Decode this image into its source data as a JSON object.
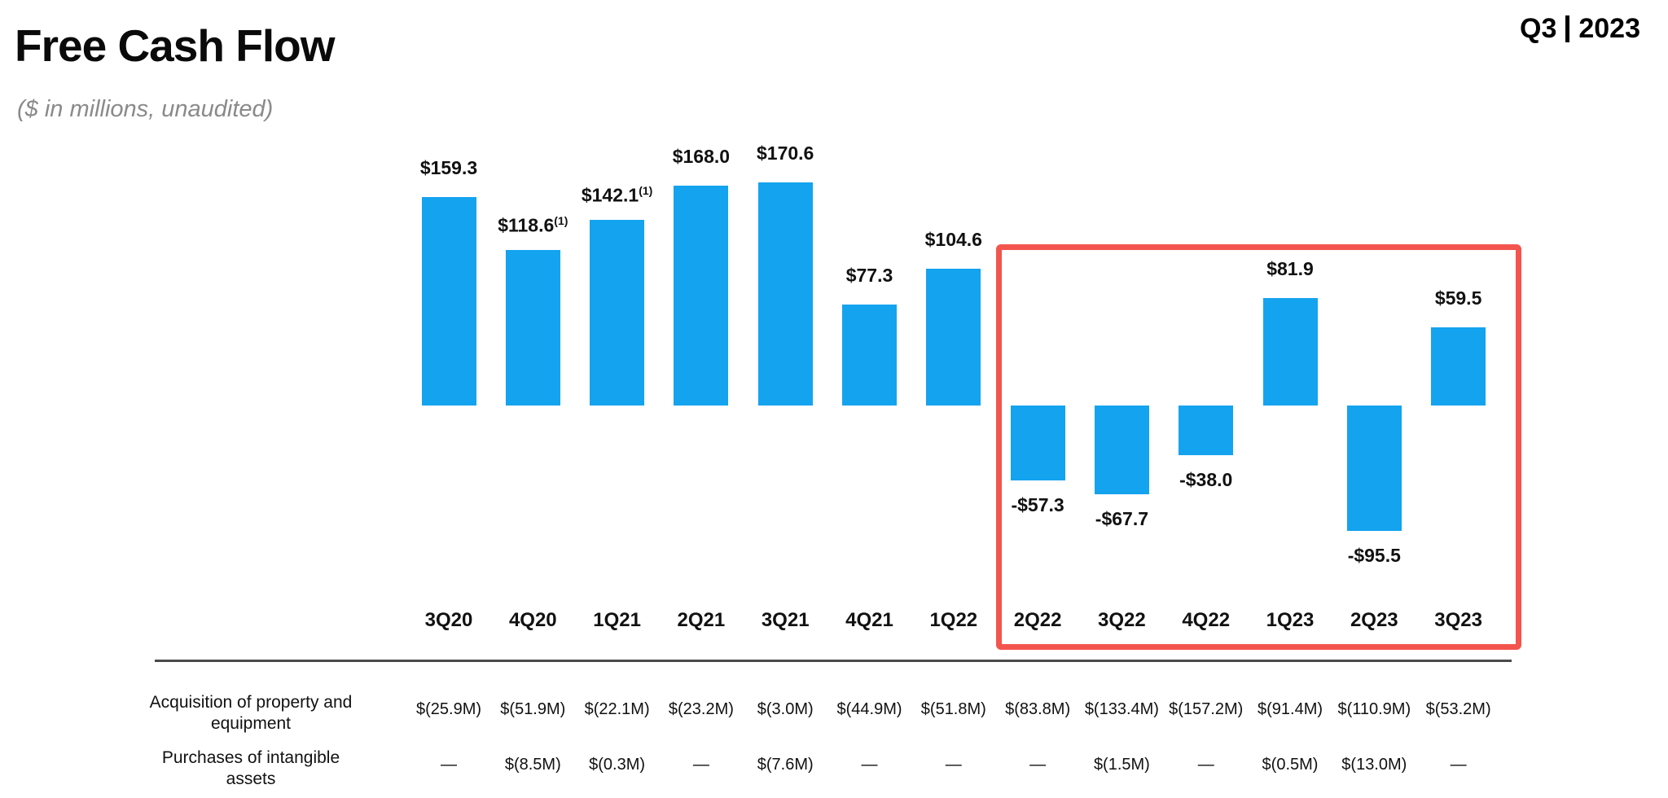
{
  "header": {
    "title": "Free Cash Flow",
    "subtitle": "($ in millions, unaudited)",
    "period_quarter": "Q3",
    "period_year": "2023"
  },
  "chart_data": {
    "type": "bar",
    "title": "Free Cash Flow",
    "xlabel": "",
    "ylabel": "$ in millions",
    "ylim": [
      -120,
      190
    ],
    "grid": false,
    "legend": false,
    "bar_color": "#14a3ef",
    "categories": [
      "3Q20",
      "4Q20",
      "1Q21",
      "2Q21",
      "3Q21",
      "4Q21",
      "1Q22",
      "2Q22",
      "3Q22",
      "4Q22",
      "1Q23",
      "2Q23",
      "3Q23"
    ],
    "values": [
      159.3,
      118.6,
      142.1,
      168.0,
      170.6,
      77.3,
      104.6,
      -57.3,
      -67.7,
      -38.0,
      81.9,
      -95.5,
      59.5
    ],
    "labels": [
      "$159.3",
      "$118.6",
      "$142.1",
      "$168.0",
      "$170.6",
      "$77.3",
      "$104.6",
      "-$57.3",
      "-$67.7",
      "-$38.0",
      "$81.9",
      "-$95.5",
      "$59.5"
    ],
    "footnotes": [
      null,
      "(1)",
      "(1)",
      null,
      null,
      null,
      null,
      null,
      null,
      null,
      null,
      null,
      null
    ],
    "highlight": {
      "from": "2Q22",
      "to": "3Q23",
      "color": "#f4544e"
    }
  },
  "table": {
    "rows": [
      {
        "label": "Acquisition of property and equipment",
        "values": [
          "$(25.9M)",
          "$(51.9M)",
          "$(22.1M)",
          "$(23.2M)",
          "$(3.0M)",
          "$(44.9M)",
          "$(51.8M)",
          "$(83.8M)",
          "$(133.4M)",
          "$(157.2M)",
          "$(91.4M)",
          "$(110.9M)",
          "$(53.2M)"
        ]
      },
      {
        "label": "Purchases of intangible assets",
        "values": [
          "—",
          "$(8.5M)",
          "$(0.3M)",
          "—",
          "$(7.6M)",
          "—",
          "—",
          "—",
          "$(1.5M)",
          "—",
          "$(0.5M)",
          "$(13.0M)",
          "—"
        ]
      }
    ]
  }
}
